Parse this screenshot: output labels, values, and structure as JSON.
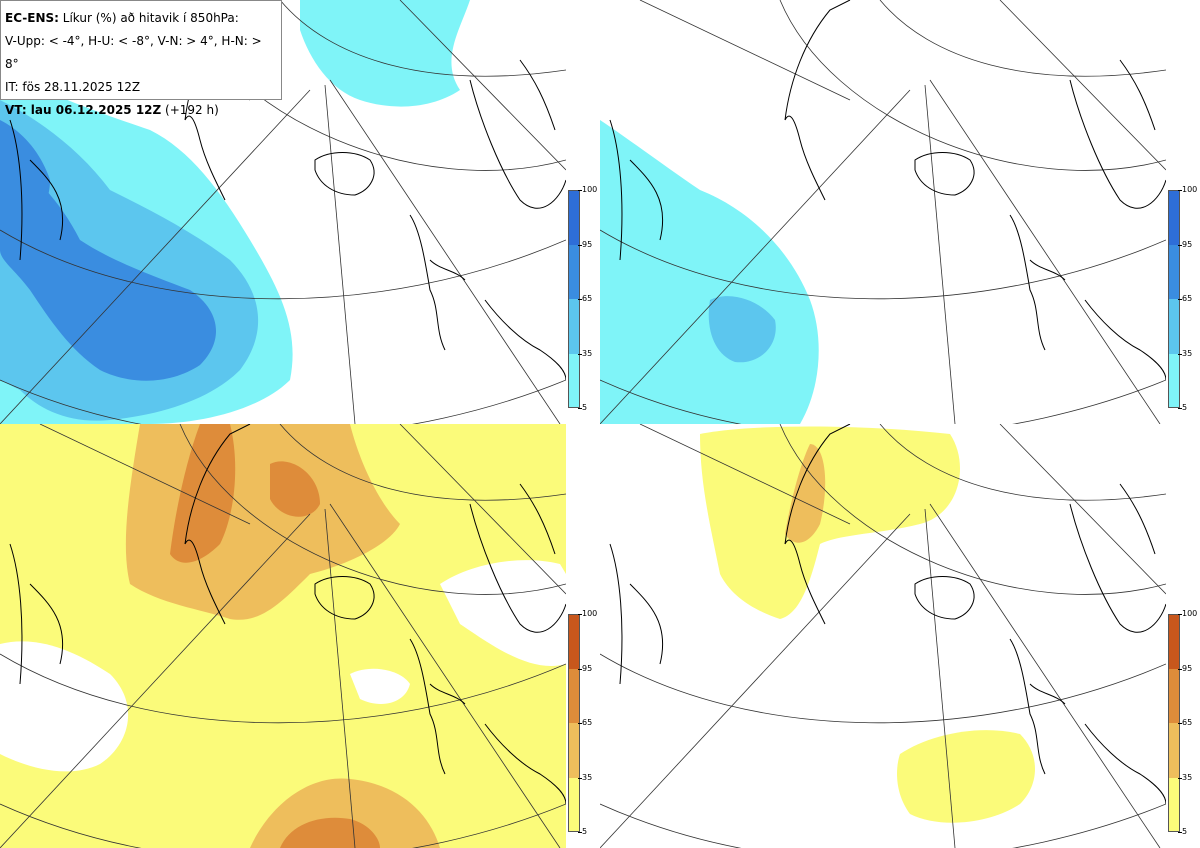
{
  "header": {
    "title_bold": "EC-ENS:",
    "title_rest": "Líkur (%) að hitavik í 850hPa:",
    "thresholds": "V-Upp: < -4°, H-U: < -8°, V-N: > 4°, H-N: > 8°",
    "it": "IT: fös 28.11.2025 12Z",
    "vt_bold": "VT: lau 06.12.2025 12Z",
    "vt_rest": "(+192 h)"
  },
  "colorbars": {
    "ticks": [
      "100",
      "95",
      "65",
      "35",
      "5"
    ],
    "cold_colors": [
      "#2e6ed8",
      "#3a8de0",
      "#5cc6ee",
      "#7ff4f8"
    ],
    "warm_colors": [
      "#c8571c",
      "#de8c3a",
      "#eebe5c",
      "#fbfb7a"
    ]
  },
  "panels": [
    {
      "id": "V-Upp",
      "category": "cold"
    },
    {
      "id": "H-U",
      "category": "cold"
    },
    {
      "id": "V-N",
      "category": "warm"
    },
    {
      "id": "H-N",
      "category": "warm"
    }
  ],
  "colors": {
    "coast": "#000000",
    "grid": "#333333"
  }
}
